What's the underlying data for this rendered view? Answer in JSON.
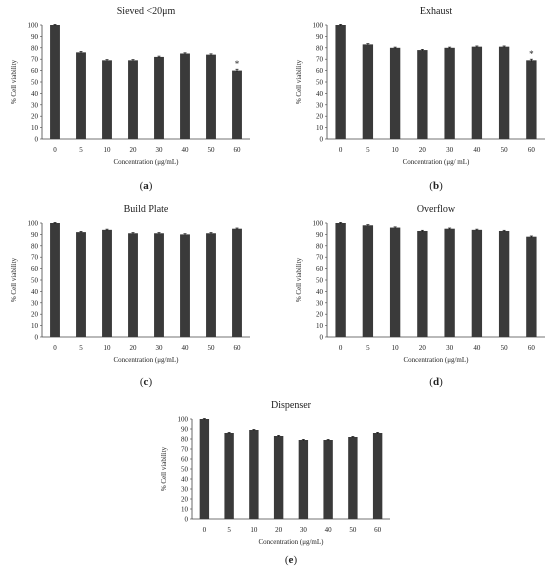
{
  "chart_data": [
    {
      "type": "bar",
      "panel_label": "(a)",
      "title": "Sieved <20μm",
      "xlabel": "Concentration (μg/mL)",
      "ylabel": "% Cell viability",
      "categories": [
        "0",
        "5",
        "10",
        "20",
        "30",
        "40",
        "50",
        "60"
      ],
      "values": [
        100,
        76,
        69,
        69,
        72,
        75,
        74,
        60
      ],
      "errors": [
        0.5,
        0.8,
        0.6,
        0.6,
        0.7,
        0.6,
        0.7,
        1.2
      ],
      "significance": [
        "",
        "",
        "",
        "",
        "",
        "",
        "",
        "*"
      ],
      "ylim": [
        0,
        100
      ],
      "yticks": [
        0,
        10,
        20,
        30,
        40,
        50,
        60,
        70,
        80,
        90,
        100
      ],
      "bar_color": "#3a3a3a"
    },
    {
      "type": "bar",
      "panel_label": "(b)",
      "title": "Exhaust",
      "xlabel": "Concentration (μg/ mL)",
      "ylabel": "% Cell viability",
      "categories": [
        "0",
        "5",
        "10",
        "20",
        "30",
        "40",
        "50",
        "60"
      ],
      "values": [
        100,
        83,
        80,
        78,
        80,
        81,
        81,
        69
      ],
      "errors": [
        0.5,
        0.7,
        0.6,
        0.6,
        0.6,
        0.6,
        0.6,
        1.0
      ],
      "significance": [
        "",
        "",
        "",
        "",
        "",
        "",
        "",
        "*"
      ],
      "ylim": [
        0,
        100
      ],
      "yticks": [
        0,
        10,
        20,
        30,
        40,
        50,
        60,
        70,
        80,
        90,
        100
      ],
      "bar_color": "#3a3a3a"
    },
    {
      "type": "bar",
      "panel_label": "(c)",
      "title": "Build Plate",
      "xlabel": "Concentration (μg/mL)",
      "ylabel": "% Cell viability",
      "categories": [
        "0",
        "5",
        "10",
        "20",
        "30",
        "40",
        "50",
        "60"
      ],
      "values": [
        100,
        92,
        94,
        91,
        91,
        90,
        91,
        95
      ],
      "errors": [
        0.5,
        0.6,
        0.6,
        0.6,
        0.6,
        0.6,
        0.6,
        0.6
      ],
      "significance": [
        "",
        "",
        "",
        "",
        "",
        "",
        "",
        ""
      ],
      "ylim": [
        0,
        100
      ],
      "yticks": [
        0,
        10,
        20,
        30,
        40,
        50,
        60,
        70,
        80,
        90,
        100
      ],
      "bar_color": "#3a3a3a"
    },
    {
      "type": "bar",
      "panel_label": "(d)",
      "title": "Overflow",
      "xlabel": "Concentration (μg/mL)",
      "ylabel": "% Cell viability",
      "categories": [
        "0",
        "5",
        "10",
        "20",
        "30",
        "40",
        "50",
        "60"
      ],
      "values": [
        100,
        98,
        96,
        93,
        95,
        94,
        93,
        88
      ],
      "errors": [
        0.5,
        0.6,
        0.6,
        0.6,
        0.6,
        0.6,
        0.6,
        0.6
      ],
      "significance": [
        "",
        "",
        "",
        "",
        "",
        "",
        "",
        ""
      ],
      "ylim": [
        0,
        100
      ],
      "yticks": [
        0,
        10,
        20,
        30,
        40,
        50,
        60,
        70,
        80,
        90,
        100
      ],
      "bar_color": "#3a3a3a"
    },
    {
      "type": "bar",
      "panel_label": "(e)",
      "title": "Dispenser",
      "xlabel": "Concentration (μg/mL)",
      "ylabel": "% Cell viability",
      "categories": [
        "0",
        "5",
        "10",
        "20",
        "30",
        "40",
        "50",
        "60"
      ],
      "values": [
        100,
        86,
        89,
        83,
        79,
        79,
        82,
        86
      ],
      "errors": [
        0.5,
        0.6,
        0.6,
        0.6,
        0.6,
        0.6,
        0.6,
        0.6
      ],
      "significance": [
        "",
        "",
        "",
        "",
        "",
        "",
        "",
        ""
      ],
      "ylim": [
        0,
        100
      ],
      "yticks": [
        0,
        10,
        20,
        30,
        40,
        50,
        60,
        70,
        80,
        90,
        100
      ],
      "bar_color": "#3a3a3a"
    }
  ]
}
